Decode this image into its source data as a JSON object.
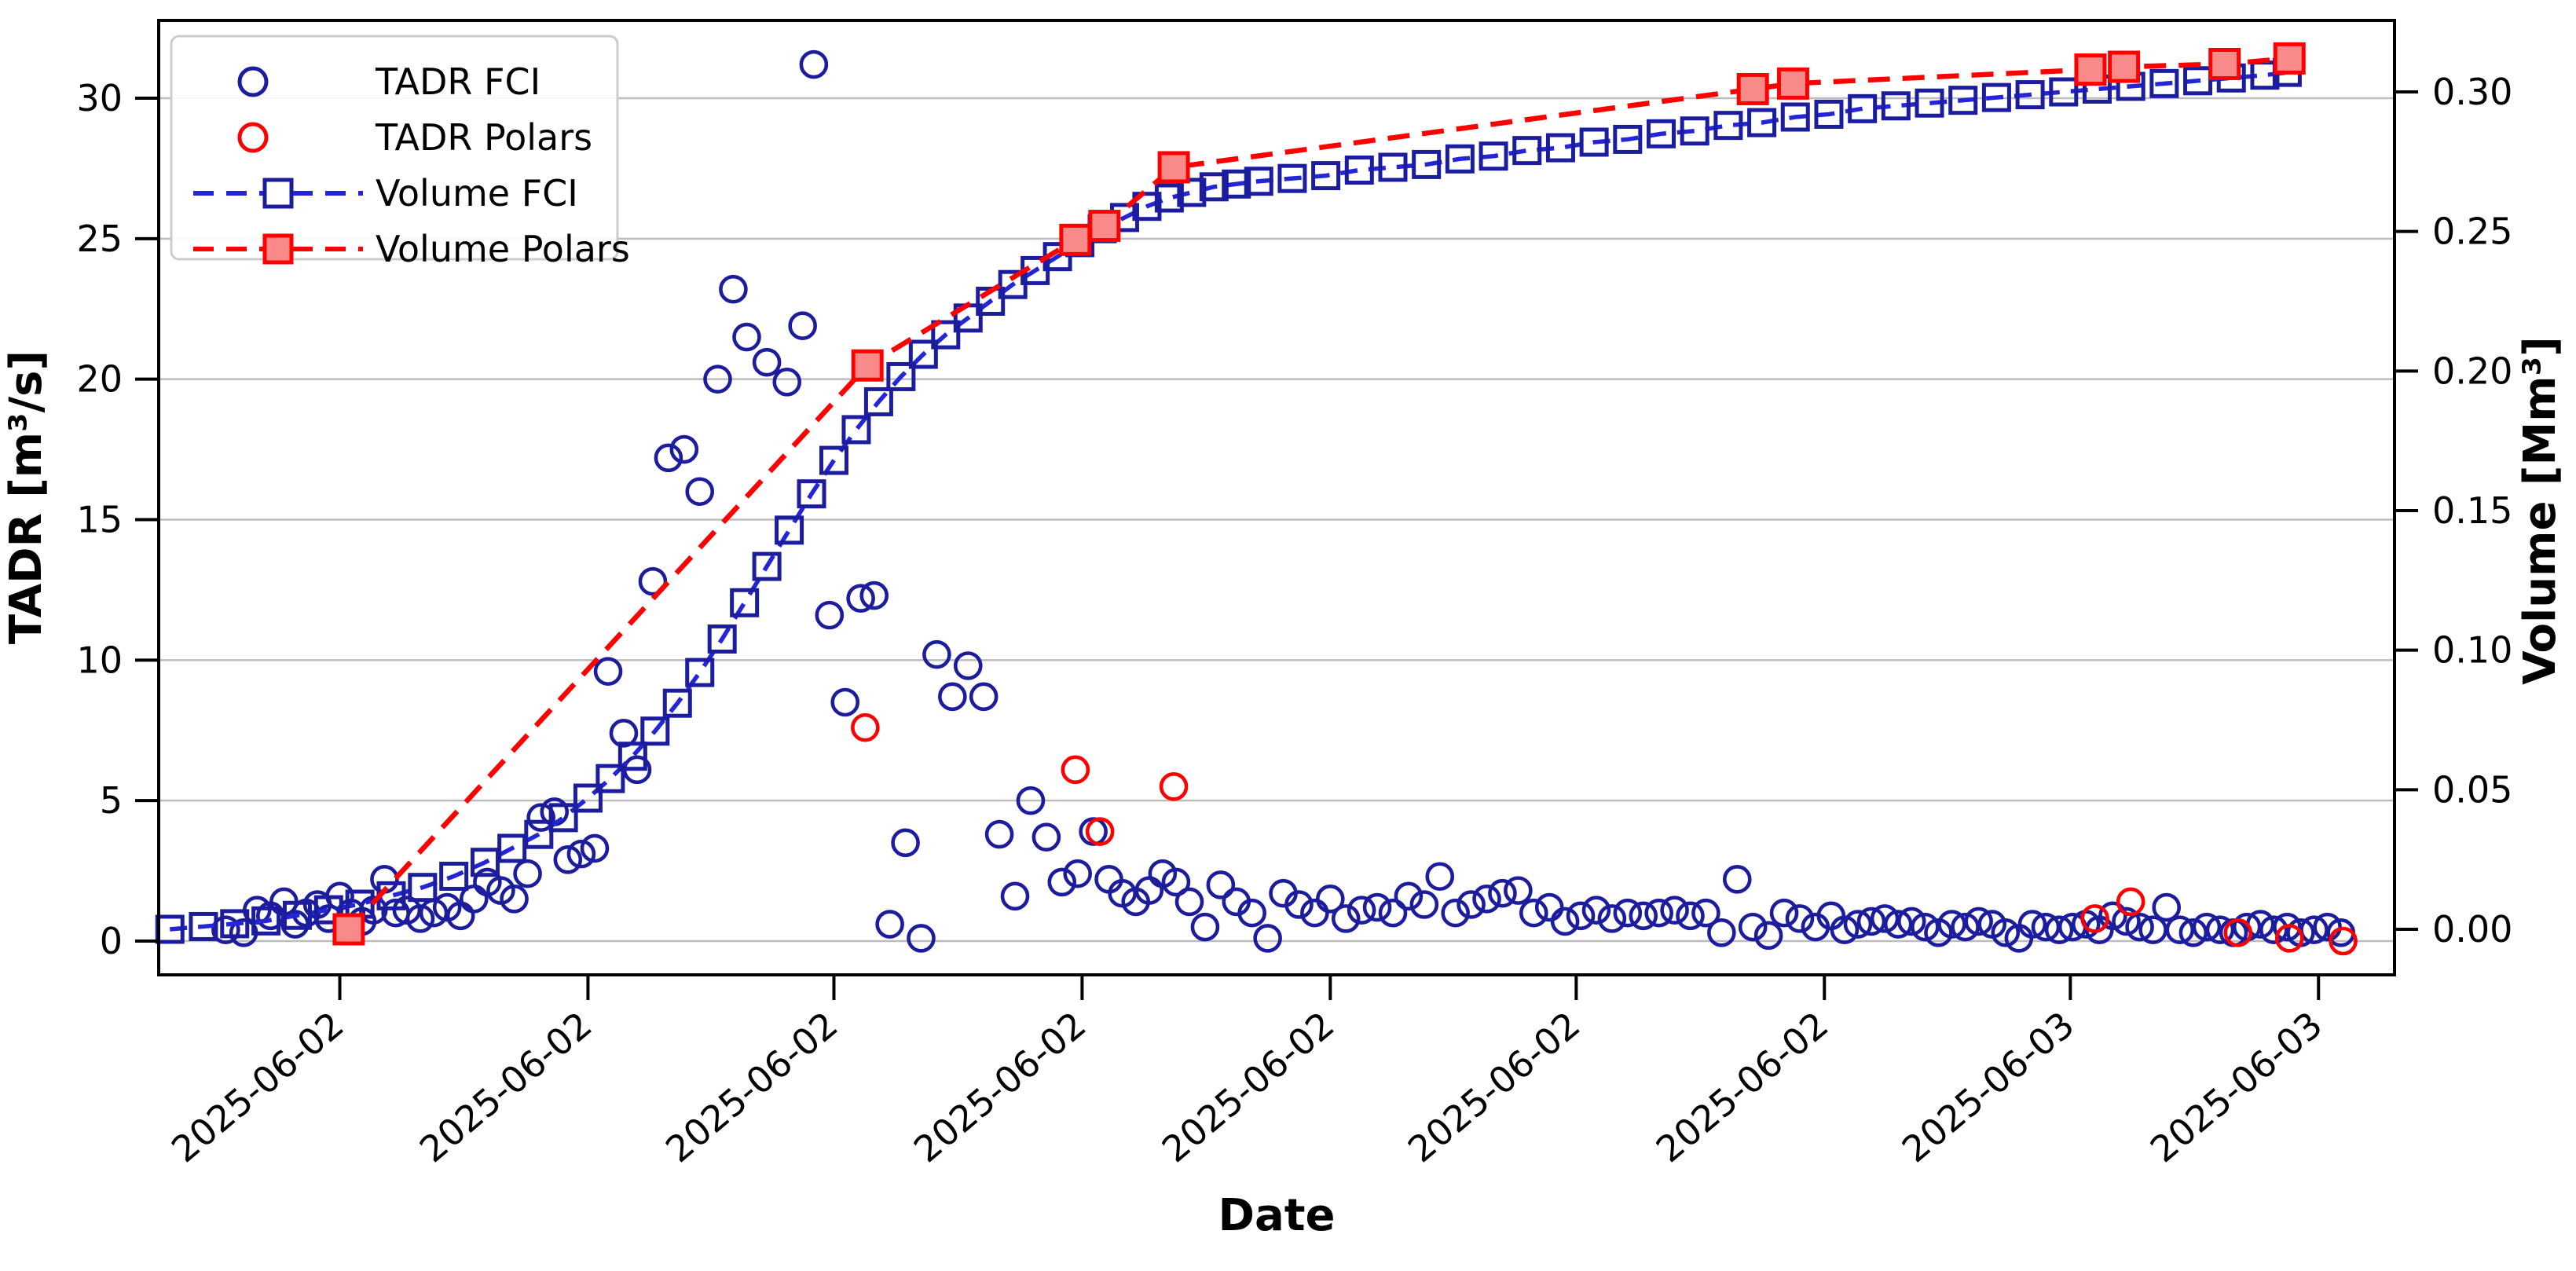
{
  "figure": {
    "background": "#ffffff"
  },
  "colors": {
    "blue_marker": "#1c1c9e",
    "blue_line": "#2424d9",
    "red": "#ff0000",
    "red_fill": "#f98a8a",
    "grid": "#bdbdbd",
    "spine": "#000000",
    "legend_border": "#cccccc"
  },
  "chart_data": {
    "type": "scatter",
    "title": "",
    "xlabel": "Date",
    "ylabel_left": "TADR [m³/s]",
    "ylabel_right": "Volume [Mm³]",
    "grid": true,
    "legend_position": "upper left",
    "x_ticks": {
      "fractions": [
        0.081,
        0.192,
        0.302,
        0.413,
        0.524,
        0.634,
        0.745,
        0.855,
        0.966
      ],
      "labels": [
        "2025-06-02",
        "2025-06-02",
        "2025-06-02",
        "2025-06-02",
        "2025-06-02",
        "2025-06-02",
        "2025-06-02",
        "2025-06-03",
        "2025-06-03"
      ]
    },
    "y_left": {
      "ticks": [
        0,
        5,
        10,
        15,
        20,
        25,
        30
      ],
      "tick_labels": [
        "0",
        "5",
        "10",
        "15",
        "20",
        "25",
        "30"
      ],
      "lim": [
        -1.3,
        32.8
      ]
    },
    "y_right": {
      "ticks": [
        0,
        0.05,
        0.1,
        0.15,
        0.2,
        0.25,
        0.3
      ],
      "tick_labels": [
        "0.00",
        "0.05",
        "0.10",
        "0.15",
        "0.20",
        "0.25",
        "0.30"
      ],
      "lim": [
        -0.005,
        0.317
      ]
    },
    "series": [
      {
        "name": "TADR FCI",
        "axis": "left",
        "marker": "circle",
        "filled": false,
        "line": false,
        "points": [
          [
            0.03,
            0.4
          ],
          [
            0.038,
            0.3
          ],
          [
            0.044,
            1.1
          ],
          [
            0.05,
            0.9
          ],
          [
            0.056,
            1.4
          ],
          [
            0.061,
            0.6
          ],
          [
            0.066,
            1.0
          ],
          [
            0.071,
            1.3
          ],
          [
            0.076,
            0.8
          ],
          [
            0.081,
            1.6
          ],
          [
            0.086,
            1.0
          ],
          [
            0.091,
            0.7
          ],
          [
            0.096,
            1.1
          ],
          [
            0.101,
            2.2
          ],
          [
            0.106,
            1.0
          ],
          [
            0.111,
            1.1
          ],
          [
            0.117,
            0.8
          ],
          [
            0.123,
            1.0
          ],
          [
            0.129,
            1.2
          ],
          [
            0.135,
            0.9
          ],
          [
            0.141,
            1.5
          ],
          [
            0.147,
            2.1
          ],
          [
            0.153,
            1.8
          ],
          [
            0.159,
            1.5
          ],
          [
            0.165,
            2.4
          ],
          [
            0.171,
            4.4
          ],
          [
            0.177,
            4.6
          ],
          [
            0.183,
            2.9
          ],
          [
            0.189,
            3.1
          ],
          [
            0.195,
            3.3
          ],
          [
            0.201,
            9.6
          ],
          [
            0.208,
            7.4
          ],
          [
            0.214,
            6.1
          ],
          [
            0.221,
            12.8
          ],
          [
            0.228,
            17.2
          ],
          [
            0.235,
            17.5
          ],
          [
            0.242,
            16.0
          ],
          [
            0.25,
            20.0
          ],
          [
            0.257,
            23.2
          ],
          [
            0.263,
            21.5
          ],
          [
            0.272,
            20.6
          ],
          [
            0.281,
            19.9
          ],
          [
            0.288,
            21.9
          ],
          [
            0.293,
            31.2
          ],
          [
            0.3,
            11.6
          ],
          [
            0.307,
            8.5
          ],
          [
            0.314,
            12.2
          ],
          [
            0.32,
            12.3
          ],
          [
            0.327,
            0.6
          ],
          [
            0.334,
            3.5
          ],
          [
            0.341,
            0.1
          ],
          [
            0.348,
            10.2
          ],
          [
            0.355,
            8.7
          ],
          [
            0.362,
            9.8
          ],
          [
            0.369,
            8.7
          ],
          [
            0.376,
            3.8
          ],
          [
            0.383,
            1.6
          ],
          [
            0.39,
            5.0
          ],
          [
            0.397,
            3.7
          ],
          [
            0.404,
            2.1
          ],
          [
            0.411,
            2.4
          ],
          [
            0.418,
            3.9
          ],
          [
            0.425,
            2.2
          ],
          [
            0.431,
            1.7
          ],
          [
            0.437,
            1.4
          ],
          [
            0.443,
            1.8
          ],
          [
            0.449,
            2.4
          ],
          [
            0.455,
            2.1
          ],
          [
            0.461,
            1.4
          ],
          [
            0.468,
            0.5
          ],
          [
            0.475,
            2.0
          ],
          [
            0.482,
            1.4
          ],
          [
            0.489,
            1.0
          ],
          [
            0.496,
            0.1
          ],
          [
            0.503,
            1.7
          ],
          [
            0.51,
            1.3
          ],
          [
            0.517,
            1.0
          ],
          [
            0.524,
            1.5
          ],
          [
            0.531,
            0.8
          ],
          [
            0.538,
            1.1
          ],
          [
            0.545,
            1.2
          ],
          [
            0.552,
            1.0
          ],
          [
            0.559,
            1.6
          ],
          [
            0.566,
            1.3
          ],
          [
            0.573,
            2.3
          ],
          [
            0.58,
            1.0
          ],
          [
            0.587,
            1.3
          ],
          [
            0.594,
            1.5
          ],
          [
            0.601,
            1.7
          ],
          [
            0.608,
            1.8
          ],
          [
            0.615,
            1.0
          ],
          [
            0.622,
            1.2
          ],
          [
            0.629,
            0.7
          ],
          [
            0.636,
            0.9
          ],
          [
            0.643,
            1.1
          ],
          [
            0.65,
            0.8
          ],
          [
            0.657,
            1.0
          ],
          [
            0.664,
            0.9
          ],
          [
            0.671,
            1.0
          ],
          [
            0.678,
            1.1
          ],
          [
            0.685,
            0.9
          ],
          [
            0.692,
            1.0
          ],
          [
            0.699,
            0.3
          ],
          [
            0.706,
            2.2
          ],
          [
            0.713,
            0.5
          ],
          [
            0.72,
            0.2
          ],
          [
            0.727,
            1.0
          ],
          [
            0.734,
            0.8
          ],
          [
            0.741,
            0.5
          ],
          [
            0.748,
            0.9
          ],
          [
            0.754,
            0.4
          ],
          [
            0.76,
            0.6
          ],
          [
            0.766,
            0.7
          ],
          [
            0.772,
            0.8
          ],
          [
            0.778,
            0.6
          ],
          [
            0.784,
            0.7
          ],
          [
            0.79,
            0.5
          ],
          [
            0.796,
            0.3
          ],
          [
            0.802,
            0.6
          ],
          [
            0.808,
            0.5
          ],
          [
            0.814,
            0.7
          ],
          [
            0.82,
            0.6
          ],
          [
            0.826,
            0.3
          ],
          [
            0.832,
            0.1
          ],
          [
            0.838,
            0.6
          ],
          [
            0.844,
            0.5
          ],
          [
            0.85,
            0.4
          ],
          [
            0.856,
            0.5
          ],
          [
            0.862,
            0.6
          ],
          [
            0.868,
            0.4
          ],
          [
            0.874,
            0.9
          ],
          [
            0.88,
            0.7
          ],
          [
            0.886,
            0.5
          ],
          [
            0.892,
            0.4
          ],
          [
            0.898,
            1.2
          ],
          [
            0.904,
            0.4
          ],
          [
            0.91,
            0.3
          ],
          [
            0.916,
            0.5
          ],
          [
            0.922,
            0.4
          ],
          [
            0.928,
            0.3
          ],
          [
            0.934,
            0.5
          ],
          [
            0.94,
            0.6
          ],
          [
            0.946,
            0.4
          ],
          [
            0.952,
            0.5
          ],
          [
            0.958,
            0.3
          ],
          [
            0.964,
            0.4
          ],
          [
            0.97,
            0.5
          ],
          [
            0.976,
            0.3
          ]
        ]
      },
      {
        "name": "TADR Polars",
        "axis": "left",
        "marker": "circle",
        "filled": false,
        "line": false,
        "points": [
          [
            0.316,
            7.6
          ],
          [
            0.41,
            6.1
          ],
          [
            0.421,
            3.9
          ],
          [
            0.454,
            5.5
          ],
          [
            0.866,
            0.8
          ],
          [
            0.882,
            1.4
          ],
          [
            0.93,
            0.3
          ],
          [
            0.953,
            0.1
          ],
          [
            0.977,
            0.0
          ]
        ]
      },
      {
        "name": "Volume FCI",
        "axis": "right",
        "marker": "square",
        "filled": false,
        "line": true,
        "points": [
          [
            0.005,
            0.0
          ],
          [
            0.02,
            0.001
          ],
          [
            0.034,
            0.002
          ],
          [
            0.048,
            0.003
          ],
          [
            0.062,
            0.005
          ],
          [
            0.076,
            0.007
          ],
          [
            0.09,
            0.009
          ],
          [
            0.104,
            0.012
          ],
          [
            0.118,
            0.015
          ],
          [
            0.132,
            0.019
          ],
          [
            0.146,
            0.024
          ],
          [
            0.158,
            0.029
          ],
          [
            0.17,
            0.034
          ],
          [
            0.181,
            0.04
          ],
          [
            0.192,
            0.047
          ],
          [
            0.202,
            0.054
          ],
          [
            0.212,
            0.062
          ],
          [
            0.222,
            0.071
          ],
          [
            0.232,
            0.081
          ],
          [
            0.242,
            0.092
          ],
          [
            0.252,
            0.104
          ],
          [
            0.262,
            0.117
          ],
          [
            0.272,
            0.13
          ],
          [
            0.282,
            0.143
          ],
          [
            0.292,
            0.156
          ],
          [
            0.302,
            0.168
          ],
          [
            0.312,
            0.179
          ],
          [
            0.322,
            0.189
          ],
          [
            0.332,
            0.198
          ],
          [
            0.342,
            0.206
          ],
          [
            0.352,
            0.213
          ],
          [
            0.362,
            0.219
          ],
          [
            0.372,
            0.225
          ],
          [
            0.382,
            0.231
          ],
          [
            0.392,
            0.236
          ],
          [
            0.402,
            0.241
          ],
          [
            0.412,
            0.246
          ],
          [
            0.422,
            0.251
          ],
          [
            0.432,
            0.255
          ],
          [
            0.442,
            0.259
          ],
          [
            0.452,
            0.262
          ],
          [
            0.462,
            0.264
          ],
          [
            0.472,
            0.266
          ],
          [
            0.482,
            0.267
          ],
          [
            0.492,
            0.268
          ],
          [
            0.507,
            0.269
          ],
          [
            0.522,
            0.27
          ],
          [
            0.537,
            0.272
          ],
          [
            0.552,
            0.273
          ],
          [
            0.567,
            0.274
          ],
          [
            0.582,
            0.276
          ],
          [
            0.597,
            0.277
          ],
          [
            0.612,
            0.279
          ],
          [
            0.627,
            0.28
          ],
          [
            0.642,
            0.282
          ],
          [
            0.657,
            0.283
          ],
          [
            0.672,
            0.285
          ],
          [
            0.687,
            0.286
          ],
          [
            0.702,
            0.288
          ],
          [
            0.717,
            0.289
          ],
          [
            0.732,
            0.291
          ],
          [
            0.747,
            0.292
          ],
          [
            0.762,
            0.294
          ],
          [
            0.777,
            0.295
          ],
          [
            0.792,
            0.296
          ],
          [
            0.807,
            0.297
          ],
          [
            0.822,
            0.298
          ],
          [
            0.837,
            0.299
          ],
          [
            0.852,
            0.3
          ],
          [
            0.867,
            0.301
          ],
          [
            0.882,
            0.302
          ],
          [
            0.897,
            0.303
          ],
          [
            0.912,
            0.304
          ],
          [
            0.927,
            0.305
          ],
          [
            0.942,
            0.306
          ],
          [
            0.952,
            0.307
          ]
        ]
      },
      {
        "name": "Volume Polars",
        "axis": "right",
        "marker": "square",
        "filled": true,
        "line": true,
        "points": [
          [
            0.085,
            0.0
          ],
          [
            0.317,
            0.202
          ],
          [
            0.41,
            0.247
          ],
          [
            0.423,
            0.252
          ],
          [
            0.454,
            0.273
          ],
          [
            0.713,
            0.301
          ],
          [
            0.731,
            0.303
          ],
          [
            0.864,
            0.308
          ],
          [
            0.879,
            0.309
          ],
          [
            0.924,
            0.31
          ],
          [
            0.953,
            0.312
          ]
        ]
      }
    ]
  }
}
